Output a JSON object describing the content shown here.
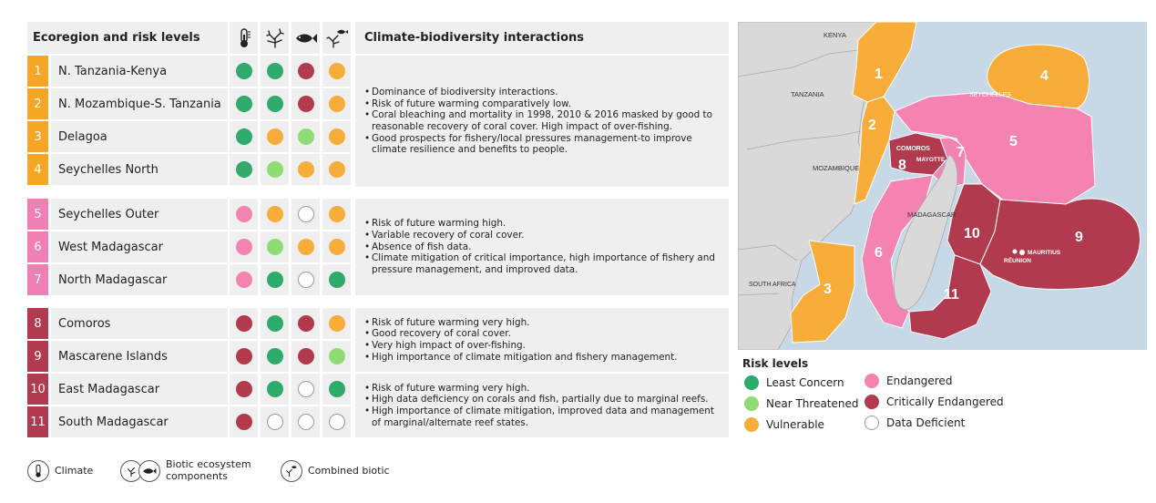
{
  "table": {
    "header": {
      "col_region": "Ecoregion and risk levels",
      "col_interactions": "Climate-biodiversity interactions",
      "icon_climate": "thermometer-icon",
      "icon_coral": "coral-icon",
      "icon_fish": "fish-icon",
      "icon_combined": "combined-biotic-icon"
    },
    "groups": [
      {
        "color": "#f5a623",
        "notes": [
          "Dominance of biodiversity interactions.",
          "Risk of future warming comparatively low.",
          "Coral bleaching and mortality in 1998, 2010 & 2016 masked by good to reasonable recovery of coral cover. High impact of over-fishing.",
          "Good prospects for fishery/local pressures management-to improve climate resilience and benefits to people."
        ],
        "rows": [
          {
            "num": "1",
            "name": "N. Tanzania-Kenya",
            "risks": [
              "LC",
              "LC",
              "CE",
              "VU"
            ]
          },
          {
            "num": "2",
            "name": "N. Mozambique-S. Tanzania",
            "risks": [
              "LC",
              "LC",
              "CE",
              "VU"
            ]
          },
          {
            "num": "3",
            "name": "Delagoa",
            "risks": [
              "LC",
              "VU",
              "NT",
              "VU"
            ]
          },
          {
            "num": "4",
            "name": "Seychelles North",
            "risks": [
              "LC",
              "NT",
              "VU",
              "VU"
            ]
          }
        ]
      },
      {
        "color": "#f07fb3",
        "notes": [
          "Risk of future warming high.",
          "Variable recovery of coral cover.",
          "Absence of fish data.",
          "Climate mitigation of critical importance, high importance of fishery and pressure management, and improved data."
        ],
        "rows": [
          {
            "num": "5",
            "name": "Seychelles Outer",
            "risks": [
              "EN",
              "VU",
              "DD",
              "VU"
            ]
          },
          {
            "num": "6",
            "name": "West Madagascar",
            "risks": [
              "EN",
              "NT",
              "VU",
              "VU"
            ]
          },
          {
            "num": "7",
            "name": "North Madagascar",
            "risks": [
              "EN",
              "LC",
              "DD",
              "LC"
            ]
          }
        ]
      },
      {
        "color": "#b23a4e",
        "notes": [
          "Risk of future warming very high.",
          "Good recovery of coral cover.",
          "Very high impact of over-fishing.",
          "High importance of climate mitigation and fishery management."
        ],
        "rows": [
          {
            "num": "8",
            "name": "Comoros",
            "risks": [
              "CE",
              "LC",
              "CE",
              "VU"
            ]
          },
          {
            "num": "9",
            "name": "Mascarene Islands",
            "risks": [
              "CE",
              "LC",
              "CE",
              "NT"
            ]
          }
        ]
      },
      {
        "color": "#b23a4e",
        "notes": [
          "Risk of future warming very high.",
          "High data deficiency on corals and fish, partially due to marginal reefs.",
          "High importance of climate mitigation, improved data and management of marginal/alternate reef states."
        ],
        "rows": [
          {
            "num": "10",
            "name": "East Madagascar",
            "risks": [
              "CE",
              "LC",
              "DD",
              "LC"
            ]
          },
          {
            "num": "11",
            "name": "South Madagascar",
            "risks": [
              "CE",
              "DD",
              "DD",
              "DD"
            ]
          }
        ]
      }
    ]
  },
  "risk_colors": {
    "LC": "#2eaa6b",
    "NT": "#8edc72",
    "VU": "#f8ad3a",
    "EN": "#f583b2",
    "CE": "#b23a4e",
    "DD": "#ffffff"
  },
  "risk_legend": {
    "title": "Risk levels",
    "items": [
      {
        "code": "LC",
        "label": "Least Concern"
      },
      {
        "code": "NT",
        "label": "Near Threatened"
      },
      {
        "code": "VU",
        "label": "Vulnerable"
      },
      {
        "code": "EN",
        "label": "Endangered"
      },
      {
        "code": "CE",
        "label": "Critically Endangered"
      },
      {
        "code": "DD",
        "label": "Data Deficient"
      }
    ]
  },
  "icon_legend": {
    "climate": "Climate",
    "biotic": "Biotic ecosystem components",
    "combined": "Combined biotic"
  },
  "map": {
    "countries": {
      "kenya": "KENYA",
      "tanzania": "TANZANIA",
      "mozambique": "MOZAMBIQUE",
      "south_africa": "SOUTH AFRICA",
      "madagascar": "MADAGASCAR",
      "seychelles": "SEYCHELLES",
      "comoros": "COMOROS",
      "mayotte": "MAYOTTE",
      "mauritius": "MAURITIUS",
      "reunion": "RÉUNION"
    },
    "region_numbers": [
      "1",
      "2",
      "3",
      "4",
      "5",
      "6",
      "7",
      "8",
      "9",
      "10",
      "11"
    ]
  }
}
